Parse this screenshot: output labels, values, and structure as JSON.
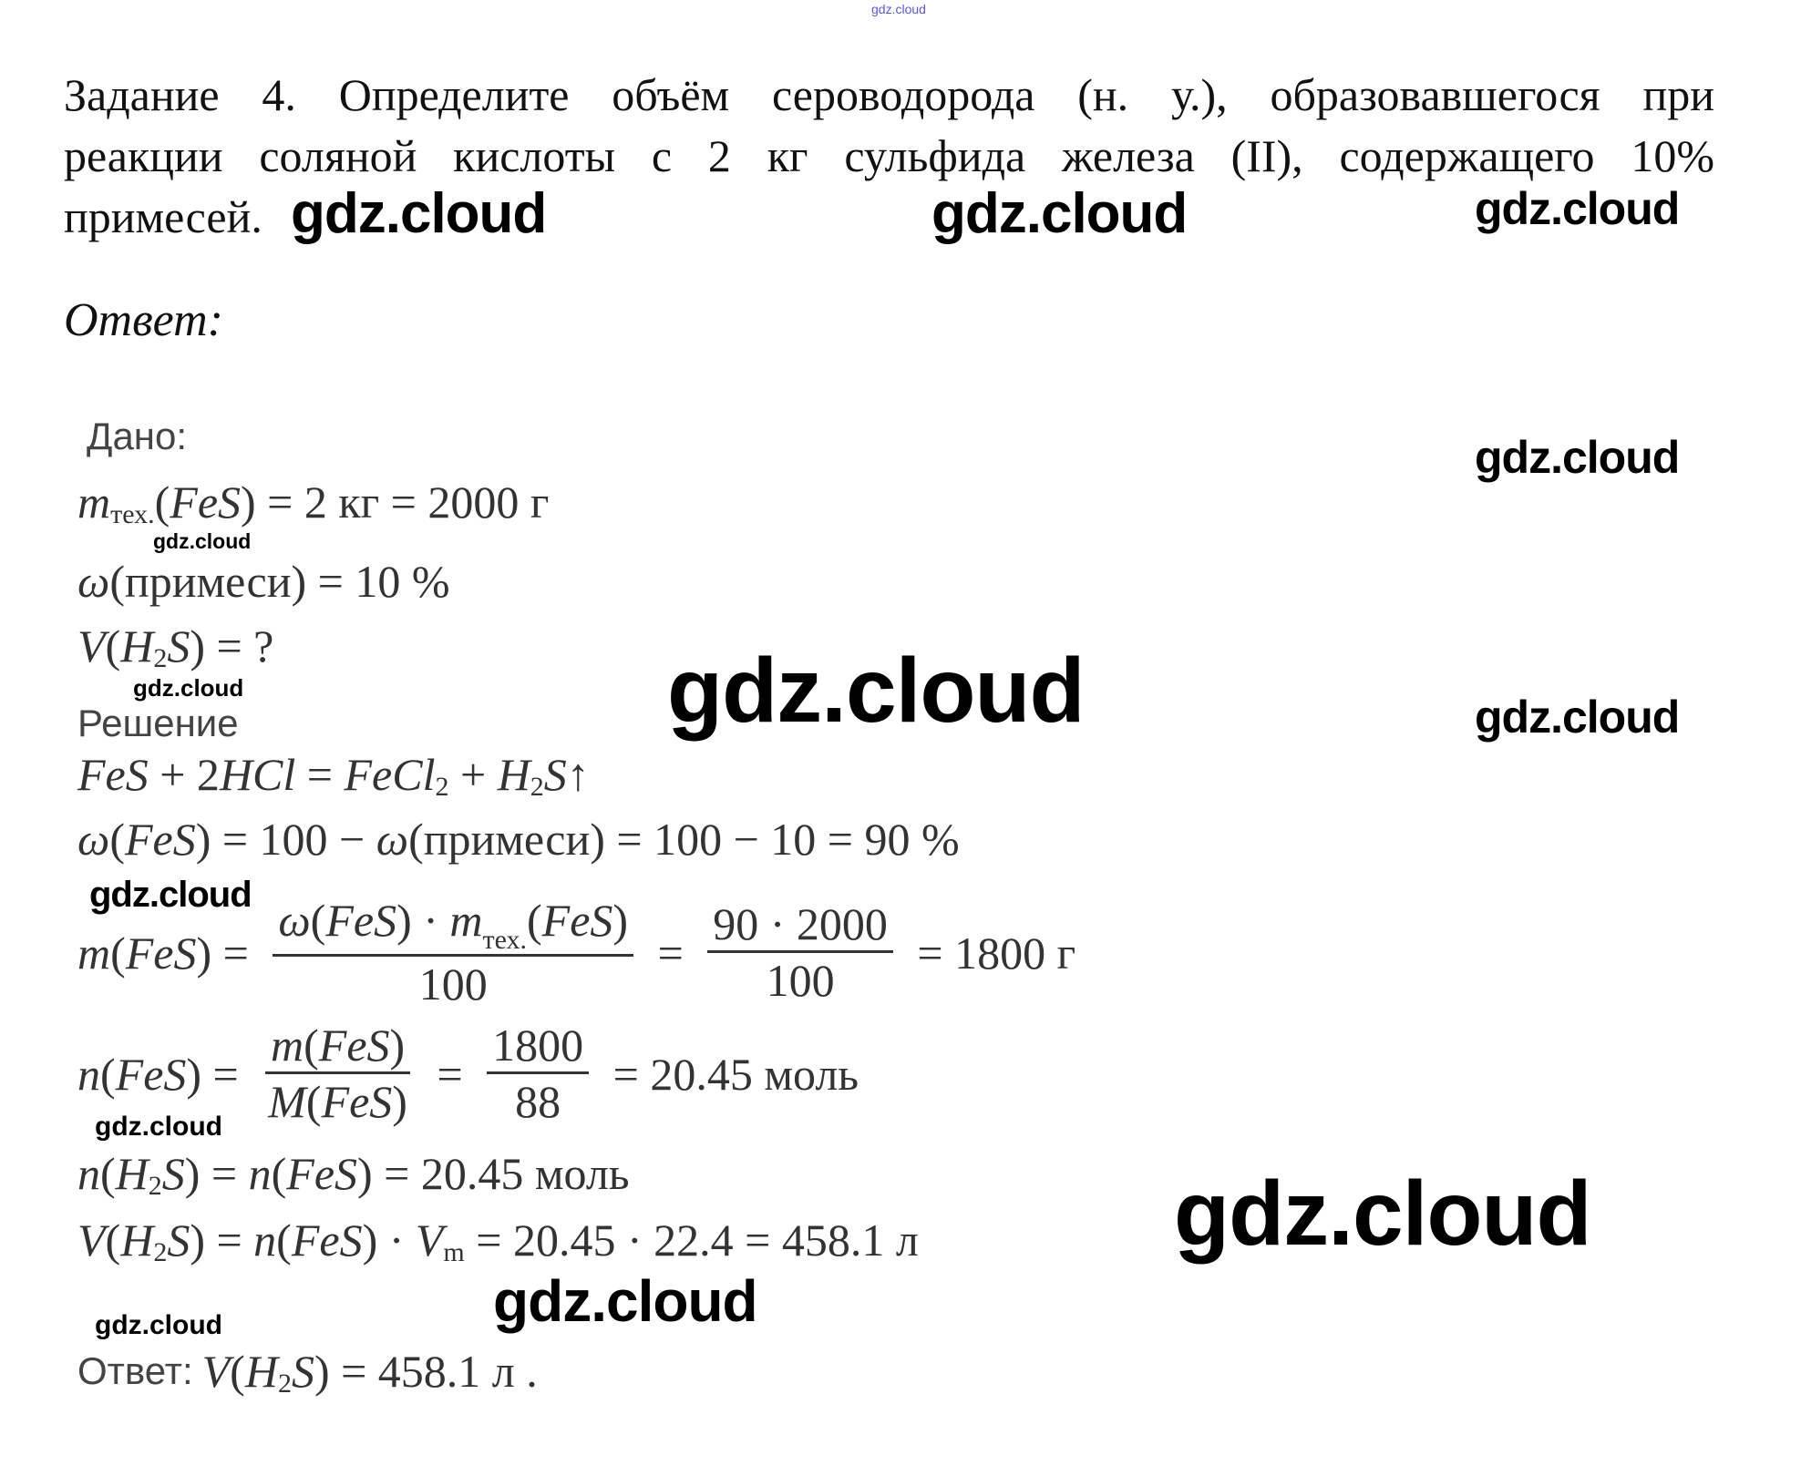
{
  "top_watermark": "gdz.cloud",
  "task": {
    "lines": [
      "Задание 4. Определите объём сероводорода (н. у.), образовавшегося при",
      "реакции соляной кислоты с 2 кг сульфида железа (II), содержащего 10%",
      "примесей."
    ]
  },
  "answer_heading": "Ответ:",
  "given": {
    "label": "Дано:",
    "formulas": [
      [
        {
          "i": "m"
        },
        {
          "sub": "тех."
        },
        "(",
        {
          "i": "FeS"
        },
        ") = 2 кг = 2000 г"
      ],
      [
        {
          "i": "ω"
        },
        "(примеси) = 10 %"
      ],
      [
        {
          "i": "V"
        },
        "(",
        {
          "i": "H"
        },
        {
          "sub": "2"
        },
        {
          "i": "S"
        },
        ") = ?"
      ]
    ]
  },
  "solution": {
    "label": "Решение",
    "formulas": [
      [
        {
          "i": "FeS"
        },
        " + 2",
        {
          "i": "HCl"
        },
        " = ",
        {
          "i": "FeCl"
        },
        {
          "sub": "2"
        },
        " + ",
        {
          "i": "H"
        },
        {
          "sub": "2"
        },
        {
          "i": "S"
        },
        "↑"
      ],
      [
        {
          "i": "ω"
        },
        "(",
        {
          "i": "FeS"
        },
        ") = 100 − ",
        {
          "i": "ω"
        },
        "(примеси) = 100 − 10 = 90 %"
      ],
      [
        {
          "i": "m"
        },
        "(",
        {
          "i": "FeS"
        },
        ") = ",
        {
          "frac": {
            "num": [
              {
                "i": "ω"
              },
              "(",
              {
                "i": "FeS"
              },
              ") · ",
              {
                "i": "m"
              },
              {
                "sub": "тех."
              },
              "(",
              {
                "i": "FeS"
              },
              ")"
            ],
            "den": [
              "100"
            ]
          }
        },
        " = ",
        {
          "frac": {
            "num": [
              "90 · 2000"
            ],
            "den": [
              "100"
            ]
          }
        },
        " = 1800 г"
      ],
      [
        {
          "i": "n"
        },
        "(",
        {
          "i": "FeS"
        },
        ") = ",
        {
          "frac": {
            "num": [
              {
                "i": "m"
              },
              "(",
              {
                "i": "FeS"
              },
              ")"
            ],
            "den": [
              {
                "i": "M"
              },
              "(",
              {
                "i": "FeS"
              },
              ")"
            ]
          }
        },
        " = ",
        {
          "frac": {
            "num": [
              "1800"
            ],
            "den": [
              "88"
            ]
          }
        },
        " = 20.45 моль"
      ],
      [
        {
          "i": "n"
        },
        "(",
        {
          "i": "H"
        },
        {
          "sub": "2"
        },
        {
          "i": "S"
        },
        ") = ",
        {
          "i": "n"
        },
        "(",
        {
          "i": "FeS"
        },
        ") = 20.45 моль"
      ],
      [
        {
          "i": "V"
        },
        "(",
        {
          "i": "H"
        },
        {
          "sub": "2"
        },
        {
          "i": "S"
        },
        ") = ",
        {
          "i": "n"
        },
        "(",
        {
          "i": "FeS"
        },
        ") · ",
        {
          "i": "V"
        },
        {
          "sub": "m"
        },
        " = 20.45 · 22.4 = 458.1 л"
      ]
    ]
  },
  "final": {
    "label": "Ответ:",
    "formula": [
      {
        "i": "V"
      },
      "(",
      {
        "i": "H"
      },
      {
        "sub": "2"
      },
      {
        "i": "S"
      },
      ") = 458.1 л ."
    ]
  },
  "watermarks": [
    "gdz.cloud",
    "gdz.cloud",
    "gdz.cloud",
    "gdz.cloud",
    "gdz.cloud",
    "gdz.cloud",
    "gdz.cloud",
    "gdz.cloud",
    "gdz.cloud",
    "gdz.cloud",
    "gdz.cloud",
    "gdz.cloud",
    "gdz.cloud"
  ]
}
